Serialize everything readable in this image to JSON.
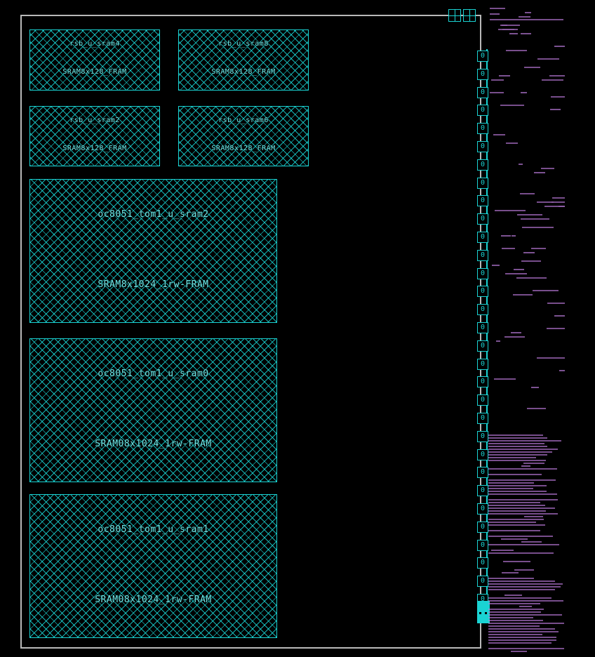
{
  "layout_view": {
    "background": "#000000",
    "die_boundary_color": "#b9b9b9",
    "macro_color": "#1ad3d3",
    "wire_color": "#c07ee0",
    "macros": [
      {
        "id": "m0",
        "instance": "rsb_u_sram4",
        "cell": "SRAM8x128_FRAM"
      },
      {
        "id": "m1",
        "instance": "rsb_u_sram8",
        "cell": "SRAM8x128_FRAM"
      },
      {
        "id": "m2",
        "instance": "rsb_u_sram2",
        "cell": "SRAM8x128_FRAM"
      },
      {
        "id": "m3",
        "instance": "rsb_u_sram6",
        "cell": "SRAM8x128_FRAM"
      },
      {
        "id": "m4",
        "instance": "oc8051_tom1_u_sram2",
        "cell": "SRAM8x1024_1rw-FRAM"
      },
      {
        "id": "m5",
        "instance": "oc8051_tom1_u_sram0",
        "cell": "SRAM08x1024_1rw-FRAM"
      },
      {
        "id": "m6",
        "instance": "oc8051_tom1_u_sram1",
        "cell": "SRAM08x1024_1rw-FRAM"
      }
    ],
    "io_pads": {
      "top_labels": [
        "0",
        "0",
        "0",
        "0",
        "0",
        "0",
        "0",
        "0",
        "0",
        "0",
        "0",
        "0",
        "0",
        "0",
        "0",
        "0",
        "0",
        "0",
        "0",
        "0",
        "0",
        "0",
        "0",
        "0",
        "0",
        "0",
        "0",
        "0",
        "0",
        "0",
        "0"
      ]
    }
  }
}
